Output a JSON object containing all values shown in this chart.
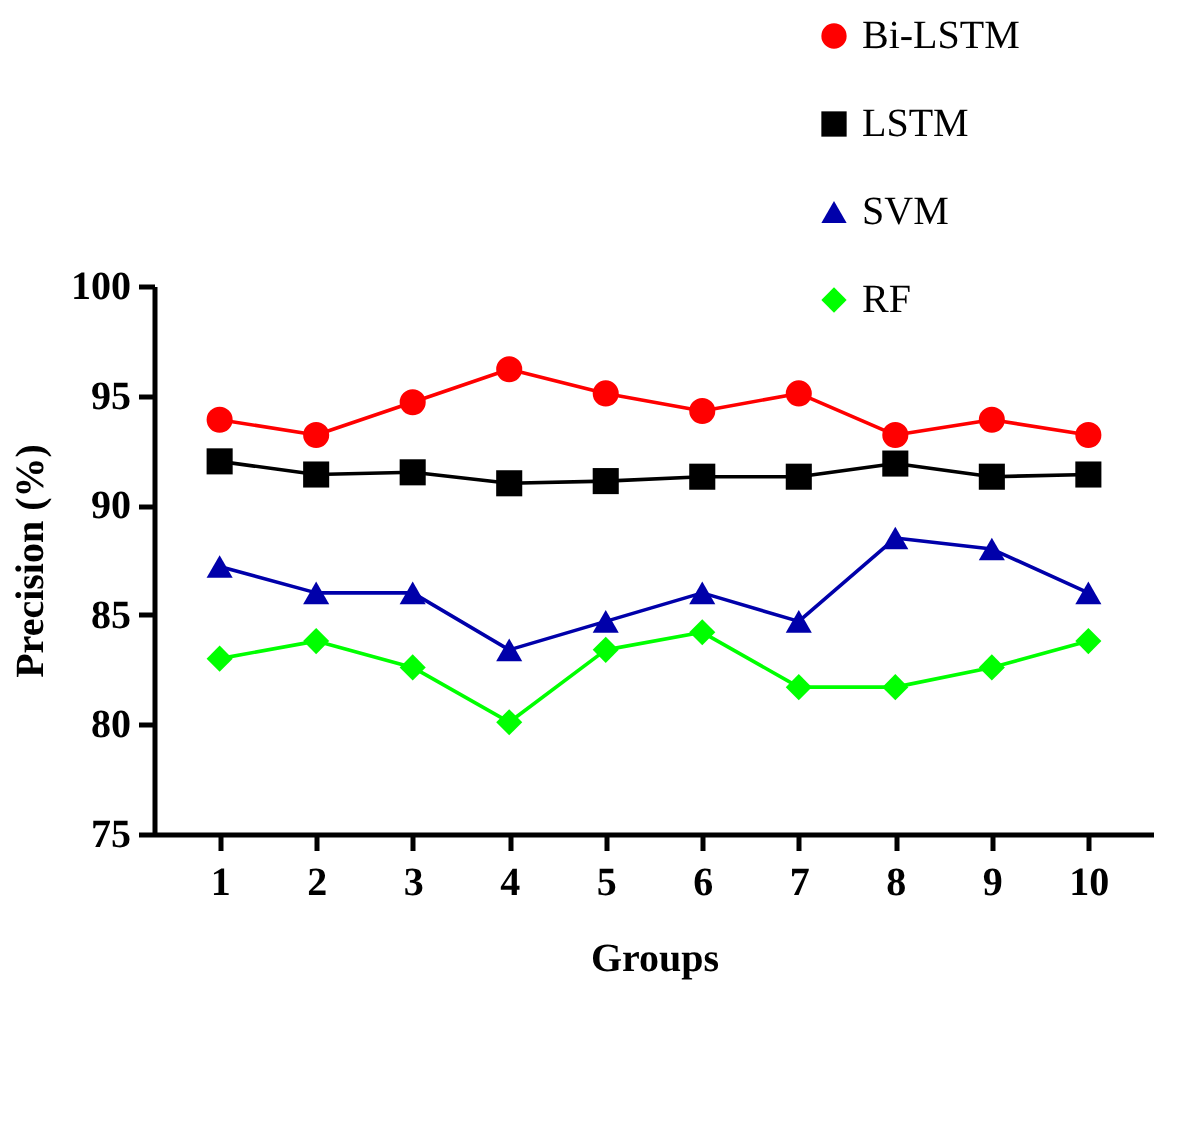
{
  "chart_data": {
    "type": "line",
    "xlabel": "Groups",
    "ylabel": "Precision (%)",
    "categories": [
      "1",
      "2",
      "3",
      "4",
      "5",
      "6",
      "7",
      "8",
      "9",
      "10"
    ],
    "series": [
      {
        "name": "Bi-LSTM",
        "color": "#ff0000",
        "marker": "circle",
        "values": [
          93.9,
          93.2,
          94.7,
          96.2,
          95.1,
          94.3,
          95.1,
          93.2,
          93.9,
          93.2
        ]
      },
      {
        "name": "LSTM",
        "color": "#000000",
        "marker": "square",
        "values": [
          92.0,
          91.4,
          91.5,
          91.0,
          91.1,
          91.3,
          91.3,
          91.9,
          91.3,
          91.4
        ]
      },
      {
        "name": "SVM",
        "color": "#0000aa",
        "marker": "triangle",
        "values": [
          87.2,
          86.0,
          86.0,
          83.4,
          84.7,
          86.0,
          84.7,
          88.5,
          88.0,
          86.0
        ]
      },
      {
        "name": "RF",
        "color": "#00ff00",
        "marker": "diamond",
        "values": [
          83.0,
          83.8,
          82.6,
          80.1,
          83.4,
          84.2,
          81.7,
          81.7,
          82.6,
          83.8
        ]
      }
    ],
    "ylim": [
      75,
      100
    ],
    "yticks": [
      75,
      80,
      85,
      90,
      95,
      100
    ],
    "grid": false,
    "legend": "top right",
    "line_style": "solid"
  }
}
